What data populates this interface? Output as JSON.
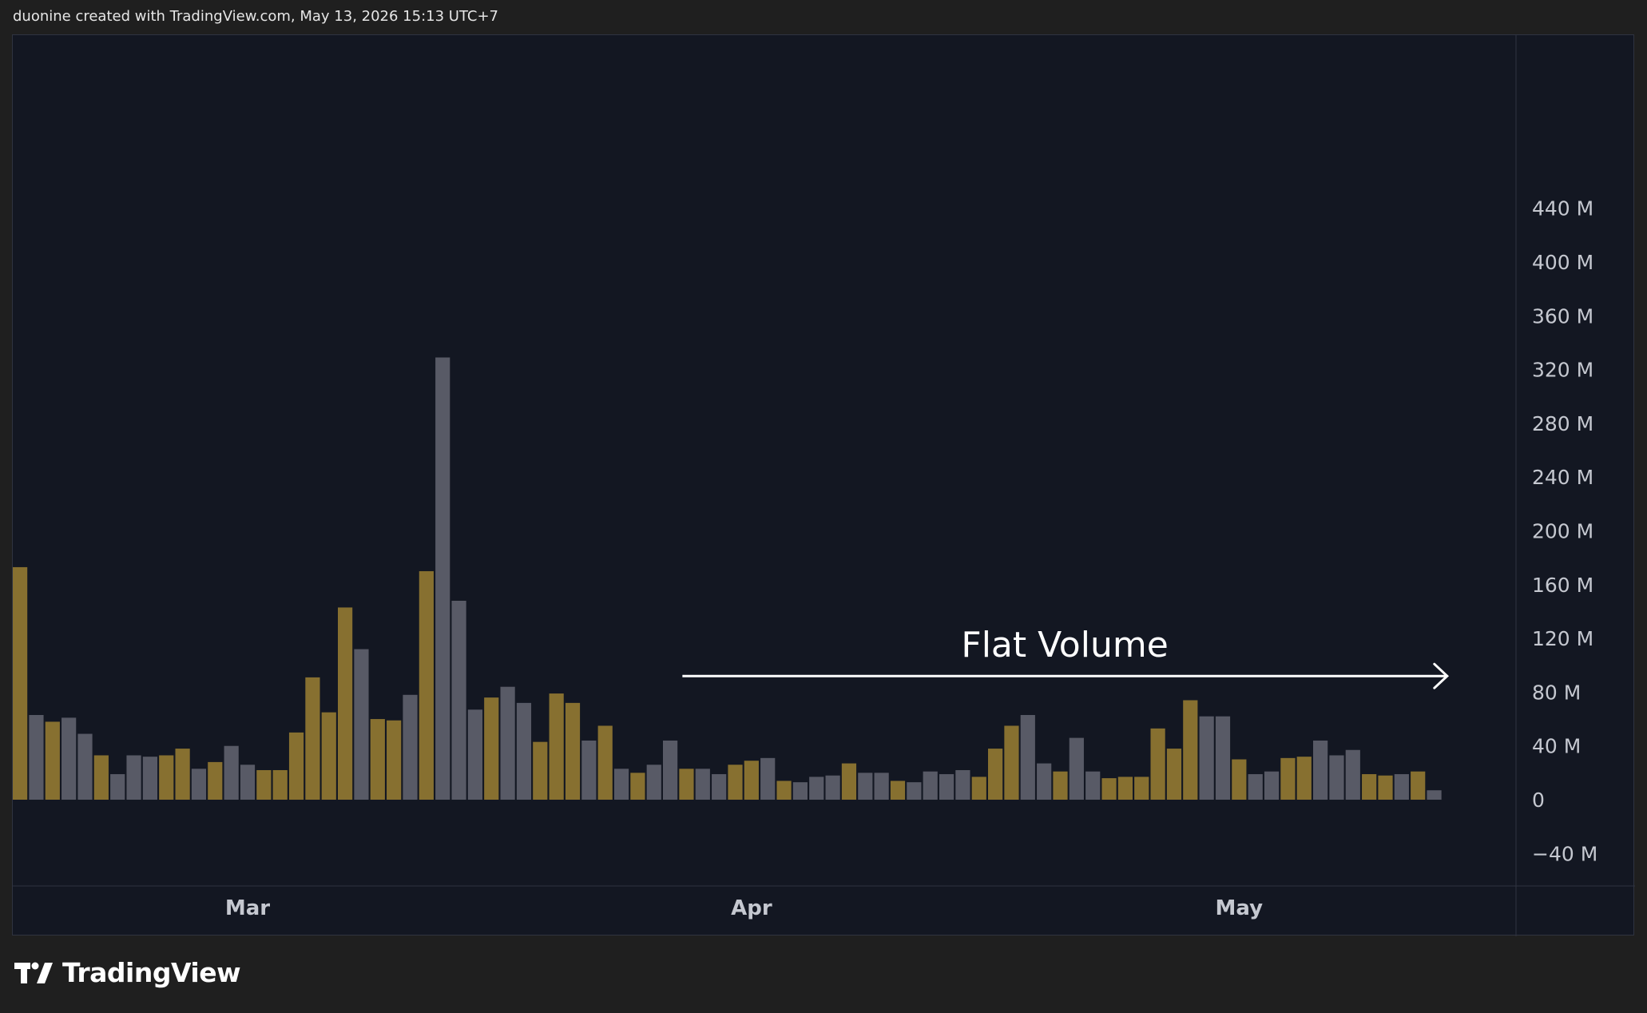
{
  "header": {
    "credit": "duonine created with TradingView.com, May 13, 2026 15:13 UTC+7"
  },
  "footer": {
    "brand": "TradingView"
  },
  "chart_data": {
    "type": "bar",
    "xlabel": "",
    "ylabel": "",
    "title": "",
    "ylim": [
      -50,
      460
    ],
    "y_ticks": [
      "440 M",
      "400 M",
      "360 M",
      "320 M",
      "280 M",
      "240 M",
      "200 M",
      "160 M",
      "120 M",
      "80 M",
      "40 M",
      "0",
      "−40 M"
    ],
    "y_tick_values": [
      440,
      400,
      360,
      320,
      280,
      240,
      200,
      160,
      120,
      80,
      40,
      0,
      -40
    ],
    "x_ticks": [
      {
        "label": "Mar",
        "index": 14
      },
      {
        "label": "Apr",
        "index": 45
      },
      {
        "label": "May",
        "index": 75
      }
    ],
    "grid": false,
    "colors": {
      "up": "#877030",
      "down": "#585a66",
      "background": "#131722",
      "text": "#c5c8d0"
    },
    "values": [
      173,
      63,
      58,
      61,
      49,
      33,
      19,
      33,
      32,
      33,
      38,
      23,
      28,
      40,
      26,
      22,
      22,
      50,
      91,
      65,
      143,
      112,
      60,
      59,
      78,
      170,
      329,
      148,
      67,
      76,
      84,
      72,
      43,
      79,
      72,
      44,
      55,
      23,
      20,
      26,
      44,
      23,
      23,
      19,
      26,
      29,
      31,
      14,
      13,
      17,
      18,
      27,
      20,
      20,
      14,
      13,
      21,
      19,
      22,
      17,
      38,
      55,
      63,
      27,
      21,
      46,
      21,
      16,
      17,
      17,
      53,
      38,
      74,
      62,
      62,
      30,
      19,
      21,
      31,
      32,
      44,
      33,
      37,
      19,
      18,
      19,
      21,
      7
    ],
    "directions": [
      "u",
      "d",
      "u",
      "d",
      "d",
      "u",
      "d",
      "d",
      "d",
      "u",
      "u",
      "d",
      "u",
      "d",
      "d",
      "u",
      "u",
      "u",
      "u",
      "u",
      "u",
      "d",
      "u",
      "u",
      "d",
      "u",
      "d",
      "d",
      "d",
      "u",
      "d",
      "d",
      "u",
      "u",
      "u",
      "d",
      "u",
      "d",
      "u",
      "d",
      "d",
      "u",
      "d",
      "d",
      "u",
      "u",
      "d",
      "u",
      "d",
      "d",
      "d",
      "u",
      "d",
      "d",
      "u",
      "d",
      "d",
      "d",
      "d",
      "u",
      "u",
      "u",
      "d",
      "d",
      "u",
      "d",
      "d",
      "u",
      "u",
      "u",
      "u",
      "u",
      "u",
      "d",
      "d",
      "u",
      "d",
      "d",
      "u",
      "u",
      "d",
      "d",
      "d",
      "u",
      "u",
      "d",
      "u",
      "d"
    ],
    "annotation": {
      "text": "Flat Volume",
      "from_index": 41,
      "to_index": 88,
      "y_value": 92
    }
  }
}
